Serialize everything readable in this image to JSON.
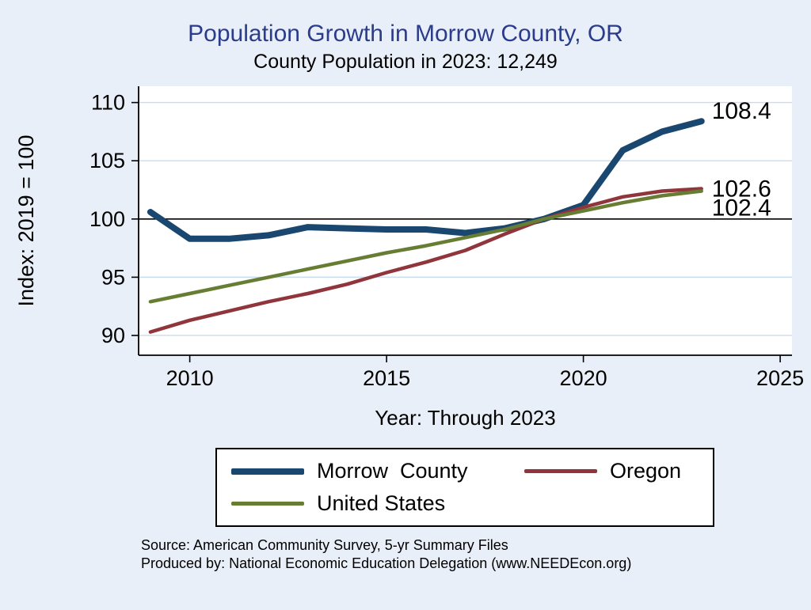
{
  "header": {
    "title": "Population Growth in Morrow County, OR",
    "subtitle": "County Population in 2023: 12,249"
  },
  "chart_data": {
    "type": "line",
    "title": "Population Growth in Morrow County, OR",
    "subtitle": "County Population in 2023: 12,249",
    "xlabel": "Year: Through 2023",
    "ylabel": "Index: 2019 = 100",
    "x": [
      2009,
      2010,
      2011,
      2012,
      2013,
      2014,
      2015,
      2016,
      2017,
      2018,
      2019,
      2020,
      2021,
      2022,
      2023
    ],
    "series": [
      {
        "name": "Morrow  County",
        "color": "#1a476f",
        "line_width": 8,
        "values": [
          100.6,
          98.3,
          98.3,
          98.6,
          99.3,
          99.2,
          99.1,
          99.1,
          98.8,
          99.2,
          100,
          101.2,
          105.9,
          107.5,
          108.4
        ],
        "end_label": "108.4",
        "label_dy": -3
      },
      {
        "name": "Oregon",
        "color": "#90353b",
        "line_width": 4.5,
        "values": [
          90.3,
          91.3,
          92.1,
          92.9,
          93.6,
          94.4,
          95.4,
          96.3,
          97.3,
          98.7,
          100,
          101.0,
          101.9,
          102.4,
          102.6
        ],
        "end_label": "102.6",
        "label_dy": 10
      },
      {
        "name": "United States",
        "color": "#667d33",
        "line_width": 4.5,
        "values": [
          92.9,
          93.6,
          94.3,
          95.0,
          95.7,
          96.4,
          97.1,
          97.7,
          98.4,
          99.1,
          100,
          100.7,
          101.4,
          102.0,
          102.4
        ],
        "end_label": "102.4",
        "label_dy": 31
      }
    ],
    "x_ticks": [
      2010,
      2015,
      2020,
      2025
    ],
    "y_ticks": [
      90,
      95,
      100,
      105,
      110
    ],
    "xlim": [
      2008.7,
      2025.3
    ],
    "ylim": [
      88.3,
      111.4
    ],
    "ref_line": 100,
    "grid": true,
    "legend_position": "bottom",
    "colors": {
      "background": "#e9eff8",
      "plot_background": "#ffffff",
      "grid": "#c9dcee",
      "axis": "#000000",
      "title": "#2b3c8c"
    }
  },
  "footer": {
    "source": "Source: American Community Survey, 5-yr Summary Files",
    "produced": "Produced by: National Economic Education Delegation (www.NEEDEcon.org)"
  }
}
